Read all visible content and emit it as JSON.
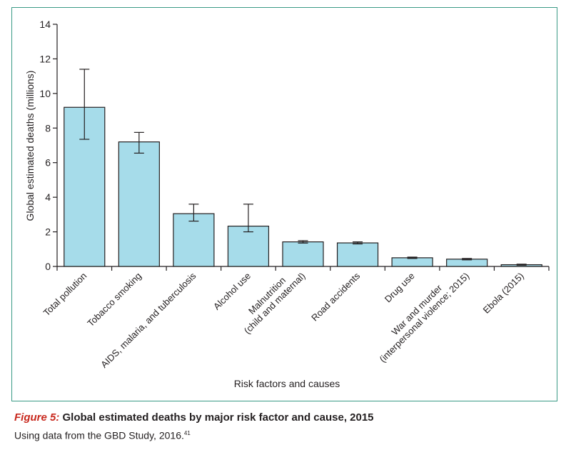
{
  "chart_data": {
    "type": "bar",
    "title": "Global estimated deaths by major risk factor and cause, 2015",
    "xlabel": "Risk factors and causes",
    "ylabel": "Global estimated deaths (millions)",
    "ylim": [
      0,
      14
    ],
    "yticks": [
      "0",
      "2",
      "4",
      "6",
      "8",
      "10",
      "12",
      "14"
    ],
    "categories": [
      "Total pollution",
      "Tobacco smoking",
      "AIDS, malaria, and tuberculosis",
      "Alcohol use",
      "Malnutrition\n(child and maternal)",
      "Road accidents",
      "Drug use",
      "War and murder\n(interpersonal violence; 2015)",
      "Ebola (2015)"
    ],
    "values": [
      9.2,
      7.2,
      3.05,
      2.33,
      1.42,
      1.36,
      0.5,
      0.42,
      0.1
    ],
    "error_low": [
      7.35,
      6.55,
      2.62,
      2.0,
      1.35,
      1.3,
      0.46,
      0.38,
      0.07
    ],
    "error_high": [
      11.4,
      7.75,
      3.6,
      3.6,
      1.49,
      1.42,
      0.54,
      0.46,
      0.13
    ],
    "bar_color": "#a6dcea",
    "edge_color": "#231f20"
  },
  "caption": {
    "label": "Figure 5:",
    "title": "Global estimated deaths by major risk factor and cause, 2015",
    "source": "Using data from the GBD Study, 2016.",
    "ref": "41"
  },
  "colors": {
    "frame": "#3a9a86",
    "caption_label": "#c8281d"
  }
}
